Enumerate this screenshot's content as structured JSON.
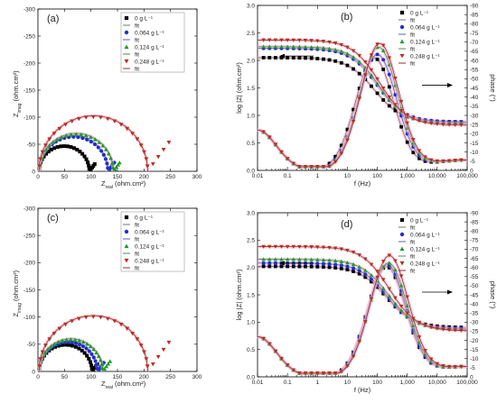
{
  "chart_data": [
    {
      "type": "scatter",
      "panel": "(a)",
      "kind": "nyquist",
      "xlabel_main": "Z",
      "xlabel_sub": "real",
      "xlabel_unit": " (ohm.cm²)",
      "ylabel_main": "Z",
      "ylabel_sub": "imag",
      "ylabel_unit": " (ohm.cm²)",
      "xlim": [
        0,
        300
      ],
      "ylim": [
        0,
        -300
      ],
      "xticks": [
        "0",
        "50",
        "100",
        "150",
        "200",
        "250",
        "300"
      ],
      "yticks": [
        "0",
        "-50",
        "-100",
        "-150",
        "-200",
        "-250",
        "-300"
      ],
      "legend": [
        {
          "label": "0 g L⁻¹",
          "marker": "square",
          "color": "#000000"
        },
        {
          "label": "fit",
          "marker": "line",
          "color": "#666666"
        },
        {
          "label": "0.064 g L⁻¹",
          "marker": "circle",
          "color": "#1f2fd0"
        },
        {
          "label": "fit",
          "marker": "line",
          "color": "#3a55c8"
        },
        {
          "label": "0.124 g L⁻¹",
          "marker": "triangle",
          "color": "#1e9a2a"
        },
        {
          "label": "fit",
          "marker": "line",
          "color": "#2d8a35"
        },
        {
          "label": "0.248 g L⁻¹",
          "marker": "invtriangle",
          "color": "#b5301a"
        },
        {
          "label": "fit",
          "marker": "line",
          "color": "#8a1a1a"
        }
      ],
      "series": [
        {
          "name": "0 g L⁻¹",
          "rs": 2,
          "rct": 95,
          "tail": 10
        },
        {
          "name": "0.064 g L⁻¹",
          "rs": 2,
          "rct": 130,
          "tail": 12
        },
        {
          "name": "0.124 g L⁻¹",
          "rs": 2,
          "rct": 140,
          "tail": 12
        },
        {
          "name": "0.248 g L⁻¹",
          "rs": 2,
          "rct": 205,
          "tail": 40
        }
      ]
    },
    {
      "type": "scatter",
      "panel": "(b)",
      "kind": "bode",
      "xlabel": "f (Hz)",
      "ylabel": "log |Z| (ohm.cm²)",
      "y2label": "phase (°)",
      "xlim": [
        0.01,
        100000
      ],
      "ylim": [
        0,
        3.0
      ],
      "y2lim": [
        0,
        -90
      ],
      "xticks": [
        "0.01",
        "0.1",
        "1",
        "10",
        "100",
        "1,000",
        "10,000",
        "100,000"
      ],
      "yticks": [
        "0.0",
        "0.5",
        "1.0",
        "1.5",
        "2.0",
        "2.5",
        "3.0"
      ],
      "y2ticks": [
        "0",
        "-5",
        "-10",
        "-15",
        "-20",
        "-25",
        "-30",
        "-35",
        "-40",
        "-45",
        "-50",
        "-55",
        "-60",
        "-65",
        "-70",
        "-75",
        "-80",
        "-85",
        "-90"
      ],
      "legend": [
        {
          "label": "0 g L⁻¹",
          "marker": "square",
          "color": "#000000"
        },
        {
          "label": "fit",
          "marker": "line",
          "color": "#666666"
        },
        {
          "label": "0.064 g L⁻¹",
          "marker": "circle",
          "color": "#1f2fd0"
        },
        {
          "label": "fit",
          "marker": "line",
          "color": "#3a55c8"
        },
        {
          "label": "0.124 g L⁻¹",
          "marker": "triangle",
          "color": "#1e9a2a"
        },
        {
          "label": "fit",
          "marker": "line",
          "color": "#2d8a35"
        },
        {
          "label": "0.248 g L⁻¹",
          "marker": "invtriangle",
          "color": "#b5301a"
        },
        {
          "label": "fit",
          "marker": "line",
          "color": "#8a1a1a"
        }
      ],
      "series": [
        {
          "name": "0 g L⁻¹",
          "logz_low": 2.05,
          "logz_high": 0.88,
          "phase_peak": -61,
          "peak_f": 80
        },
        {
          "name": "0.064 g L⁻¹",
          "logz_low": 2.22,
          "logz_high": 0.88,
          "phase_peak": -63,
          "peak_f": 100
        },
        {
          "name": "0.124 g L⁻¹",
          "logz_low": 2.25,
          "logz_high": 0.85,
          "phase_peak": -67,
          "peak_f": 110
        },
        {
          "name": "0.248 g L⁻¹",
          "logz_low": 2.37,
          "logz_high": 0.82,
          "phase_peak": -69,
          "peak_f": 120
        }
      ]
    },
    {
      "type": "scatter",
      "panel": "(c)",
      "kind": "nyquist",
      "xlabel_main": "Z",
      "xlabel_sub": "real",
      "xlabel_unit": " (ohm.cm²)",
      "ylabel_main": "Z",
      "ylabel_sub": "imag",
      "ylabel_unit": " (ohm.cm²)",
      "xlim": [
        0,
        300
      ],
      "ylim": [
        0,
        -300
      ],
      "xticks": [
        "0",
        "50",
        "100",
        "150",
        "200",
        "250",
        "300"
      ],
      "yticks": [
        "0",
        "-50",
        "-100",
        "-150",
        "-200",
        "-250",
        "-300"
      ],
      "legend": [
        {
          "label": "0 g L⁻¹",
          "marker": "square",
          "color": "#000000"
        },
        {
          "label": "fit",
          "marker": "line",
          "color": "#666666"
        },
        {
          "label": "0.064 g L⁻¹",
          "marker": "circle",
          "color": "#1f2fd0"
        },
        {
          "label": "fit",
          "marker": "line",
          "color": "#3a55c8"
        },
        {
          "label": "0.124 g L⁻¹",
          "marker": "triangle",
          "color": "#1e9a2a"
        },
        {
          "label": "fit",
          "marker": "line",
          "color": "#2d8a35"
        },
        {
          "label": "0.248 g L⁻¹",
          "marker": "invtriangle",
          "color": "#b5301a"
        },
        {
          "label": "fit",
          "marker": "line",
          "color": "#8a1a1a"
        }
      ],
      "series": [
        {
          "name": "0 g L⁻¹",
          "rs": 2,
          "rct": 100,
          "tail": 10
        },
        {
          "name": "0.064 g L⁻¹",
          "rs": 2,
          "rct": 110,
          "tail": 12
        },
        {
          "name": "0.124 g L⁻¹",
          "rs": 2,
          "rct": 120,
          "tail": 14
        },
        {
          "name": "0.248 g L⁻¹",
          "rs": 2,
          "rct": 205,
          "tail": 40
        }
      ]
    },
    {
      "type": "scatter",
      "panel": "(d)",
      "kind": "bode",
      "xlabel": "f (Hz)",
      "ylabel": "log |Z| (ohm.cm²)",
      "y2label": "phase (°)",
      "xlim": [
        0.01,
        100000
      ],
      "ylim": [
        0,
        3.0
      ],
      "y2lim": [
        0,
        -90
      ],
      "xticks": [
        "0.01",
        "0.1",
        "1",
        "10",
        "100",
        "1,000",
        "10,000",
        "100,000"
      ],
      "yticks": [
        "0.0",
        "0.5",
        "1.0",
        "1.5",
        "2.0",
        "2.5",
        "3.0"
      ],
      "y2ticks": [
        "0",
        "-5",
        "-10",
        "-15",
        "-20",
        "-25",
        "-30",
        "-35",
        "-40",
        "-45",
        "-50",
        "-55",
        "-60",
        "-65",
        "-70",
        "-75",
        "-80",
        "-85",
        "-90"
      ],
      "legend": [
        {
          "label": "0 g L⁻¹",
          "marker": "square",
          "color": "#000000"
        },
        {
          "label": "fit",
          "marker": "line",
          "color": "#666666"
        },
        {
          "label": "0.064 g L⁻¹",
          "marker": "circle",
          "color": "#1f2fd0"
        },
        {
          "label": "fit",
          "marker": "line",
          "color": "#3a55c8"
        },
        {
          "label": "0.124 g L⁻¹",
          "marker": "triangle",
          "color": "#1e9a2a"
        },
        {
          "label": "fit",
          "marker": "line",
          "color": "#2d8a35"
        },
        {
          "label": "0.248 g L⁻¹",
          "marker": "invtriangle",
          "color": "#b5301a"
        },
        {
          "label": "fit",
          "marker": "line",
          "color": "#8a1a1a"
        }
      ],
      "series": [
        {
          "name": "0 g L⁻¹",
          "logz_low": 2.02,
          "logz_high": 0.9,
          "phase_peak": -60,
          "peak_f": 200
        },
        {
          "name": "0.064 g L⁻¹",
          "logz_low": 2.08,
          "logz_high": 0.88,
          "phase_peak": -61,
          "peak_f": 210
        },
        {
          "name": "0.124 g L⁻¹",
          "logz_low": 2.15,
          "logz_high": 0.86,
          "phase_peak": -62,
          "peak_f": 230
        },
        {
          "name": "0.248 g L⁻¹",
          "logz_low": 2.38,
          "logz_high": 0.84,
          "phase_peak": -66,
          "peak_f": 250
        }
      ]
    }
  ]
}
